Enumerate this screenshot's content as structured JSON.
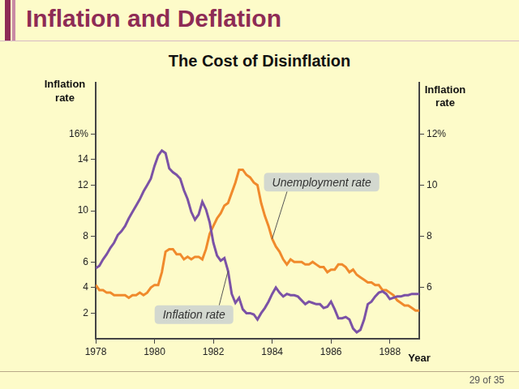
{
  "header": {
    "title": "Inflation and Deflation"
  },
  "footer": {
    "page": "29 of 35"
  },
  "chart_data": {
    "type": "line",
    "title": "The Cost of Disinflation",
    "xlabel": "Year",
    "ylabel": "Inflation rate",
    "y2label": "Inflation rate",
    "x": [
      1978,
      1978.125,
      1978.25,
      1978.375,
      1978.5,
      1978.625,
      1978.75,
      1978.875,
      1979,
      1979.125,
      1979.25,
      1979.375,
      1979.5,
      1979.625,
      1979.75,
      1979.875,
      1980,
      1980.125,
      1980.25,
      1980.375,
      1980.5,
      1980.625,
      1980.75,
      1980.875,
      1981,
      1981.125,
      1981.25,
      1981.375,
      1981.5,
      1981.625,
      1981.75,
      1981.875,
      1982,
      1982.125,
      1982.25,
      1982.375,
      1982.5,
      1982.625,
      1982.75,
      1982.875,
      1983,
      1983.125,
      1983.25,
      1983.375,
      1983.5,
      1983.625,
      1983.75,
      1983.875,
      1984,
      1984.125,
      1984.25,
      1984.375,
      1984.5,
      1984.625,
      1984.75,
      1984.875,
      1985,
      1985.125,
      1985.25,
      1985.375,
      1985.5,
      1985.625,
      1985.75,
      1985.875,
      1986,
      1986.125,
      1986.25,
      1986.375,
      1986.5,
      1986.625,
      1986.75,
      1986.875,
      1987,
      1987.125,
      1987.25,
      1987.375,
      1987.5,
      1987.625,
      1987.75,
      1987.875,
      1988,
      1988.125,
      1988.25,
      1988.375,
      1988.5,
      1988.625,
      1988.75,
      1988.875,
      1989
    ],
    "series": [
      {
        "name": "Inflation rate",
        "color": "#7b52a6",
        "values": [
          5.5,
          5.7,
          6.2,
          6.6,
          7.1,
          7.5,
          8.1,
          8.4,
          8.8,
          9.4,
          9.9,
          10.4,
          10.9,
          11.5,
          12.0,
          12.5,
          13.5,
          14.3,
          14.7,
          14.5,
          13.3,
          13.0,
          12.8,
          12.5,
          11.6,
          10.9,
          9.9,
          9.3,
          9.7,
          10.7,
          10.1,
          9.1,
          7.5,
          6.5,
          6.1,
          6.3,
          5.3,
          3.5,
          2.8,
          3.2,
          2.3,
          2.0,
          2.0,
          1.9,
          1.5,
          2.0,
          2.4,
          2.9,
          3.5,
          4.0,
          3.6,
          3.3,
          3.5,
          3.4,
          3.4,
          3.3,
          3.0,
          2.7,
          2.9,
          2.8,
          2.7,
          2.7,
          2.4,
          2.5,
          2.9,
          2.3,
          1.6,
          1.6,
          1.7,
          1.5,
          0.8,
          0.5,
          0.7,
          1.5,
          2.7,
          2.9,
          3.3,
          3.6,
          3.7,
          3.5,
          3.1,
          3.2,
          3.3,
          3.3,
          3.4,
          3.4,
          3.5,
          3.5,
          3.5
        ]
      },
      {
        "name": "Unemployment rate",
        "color": "#f08a2c",
        "axis": "y2",
        "values": [
          6.1,
          5.9,
          5.9,
          5.8,
          5.8,
          5.7,
          5.7,
          5.7,
          5.7,
          5.6,
          5.7,
          5.7,
          5.8,
          5.7,
          5.8,
          6.0,
          6.1,
          6.1,
          6.6,
          7.4,
          7.5,
          7.5,
          7.3,
          7.3,
          7.1,
          7.2,
          7.1,
          7.2,
          7.2,
          7.1,
          7.5,
          8.1,
          8.4,
          8.7,
          8.9,
          9.2,
          9.3,
          9.7,
          10.1,
          10.6,
          10.6,
          10.4,
          10.3,
          10.1,
          10.0,
          9.3,
          8.8,
          8.4,
          7.9,
          7.6,
          7.4,
          7.1,
          6.9,
          7.1,
          7.0,
          7.0,
          7.0,
          6.9,
          6.9,
          7.0,
          6.9,
          6.8,
          6.8,
          6.6,
          6.7,
          6.7,
          6.9,
          6.9,
          6.8,
          6.6,
          6.7,
          6.5,
          6.4,
          6.3,
          6.2,
          6.2,
          6.1,
          6.1,
          5.9,
          5.9,
          5.8,
          5.7,
          5.5,
          5.4,
          5.3,
          5.3,
          5.2,
          5.1,
          5.1
        ]
      }
    ],
    "xlim": [
      1978,
      1989
    ],
    "xticks": [
      1978,
      1980,
      1982,
      1984,
      1986,
      1988
    ],
    "ylim": [
      0,
      20
    ],
    "yticks": [
      2,
      4,
      6,
      8,
      10,
      12,
      14,
      {
        "value": 16,
        "label": "16%"
      }
    ],
    "y2lim": [
      4,
      14
    ],
    "y2ticks": [
      6,
      8,
      10,
      {
        "value": 12,
        "label": "12%"
      }
    ],
    "grid": false
  }
}
